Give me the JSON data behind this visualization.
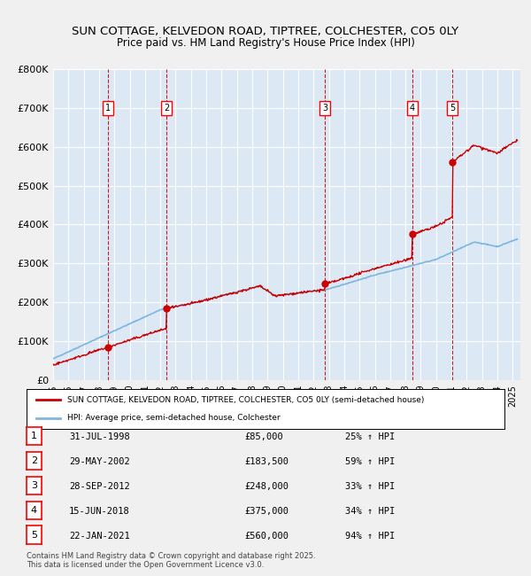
{
  "title_line1": "SUN COTTAGE, KELVEDON ROAD, TIPTREE, COLCHESTER, CO5 0LY",
  "title_line2": "Price paid vs. HM Land Registry's House Price Index (HPI)",
  "bg_color": "#dce9f5",
  "plot_bg_color": "#dce9f5",
  "grid_color": "#ffffff",
  "hpi_line_color": "#7eb6e0",
  "price_line_color": "#cc0000",
  "sale_marker_color": "#cc0000",
  "vline_color": "#cc0000",
  "xlabel": "",
  "ylabel": "",
  "ylim": [
    0,
    800000
  ],
  "yticks": [
    0,
    100000,
    200000,
    300000,
    400000,
    500000,
    600000,
    700000,
    800000
  ],
  "ytick_labels": [
    "£0",
    "£100K",
    "£200K",
    "£300K",
    "£400K",
    "£500K",
    "£600K",
    "£700K",
    "£800K"
  ],
  "sales": [
    {
      "num": 1,
      "date_label": "31-JUL-1998",
      "year": 1998.58,
      "price": 85000,
      "hpi_pct": "25%",
      "arrow": "↑"
    },
    {
      "num": 2,
      "date_label": "29-MAY-2002",
      "year": 2002.41,
      "price": 183500,
      "hpi_pct": "59%",
      "arrow": "↑"
    },
    {
      "num": 3,
      "date_label": "28-SEP-2012",
      "year": 2012.75,
      "price": 248000,
      "hpi_pct": "33%",
      "arrow": "↑"
    },
    {
      "num": 4,
      "date_label": "15-JUN-2018",
      "year": 2018.45,
      "price": 375000,
      "hpi_pct": "34%",
      "arrow": "↑"
    },
    {
      "num": 5,
      "date_label": "22-JAN-2021",
      "year": 2021.06,
      "price": 560000,
      "hpi_pct": "94%",
      "arrow": "↑"
    }
  ],
  "legend_line1": "SUN COTTAGE, KELVEDON ROAD, TIPTREE, COLCHESTER, CO5 0LY (semi-detached house)",
  "legend_line2": "HPI: Average price, semi-detached house, Colchester",
  "footer": "Contains HM Land Registry data © Crown copyright and database right 2025.\nThis data is licensed under the Open Government Licence v3.0.",
  "xmin": 1995.0,
  "xmax": 2025.5
}
